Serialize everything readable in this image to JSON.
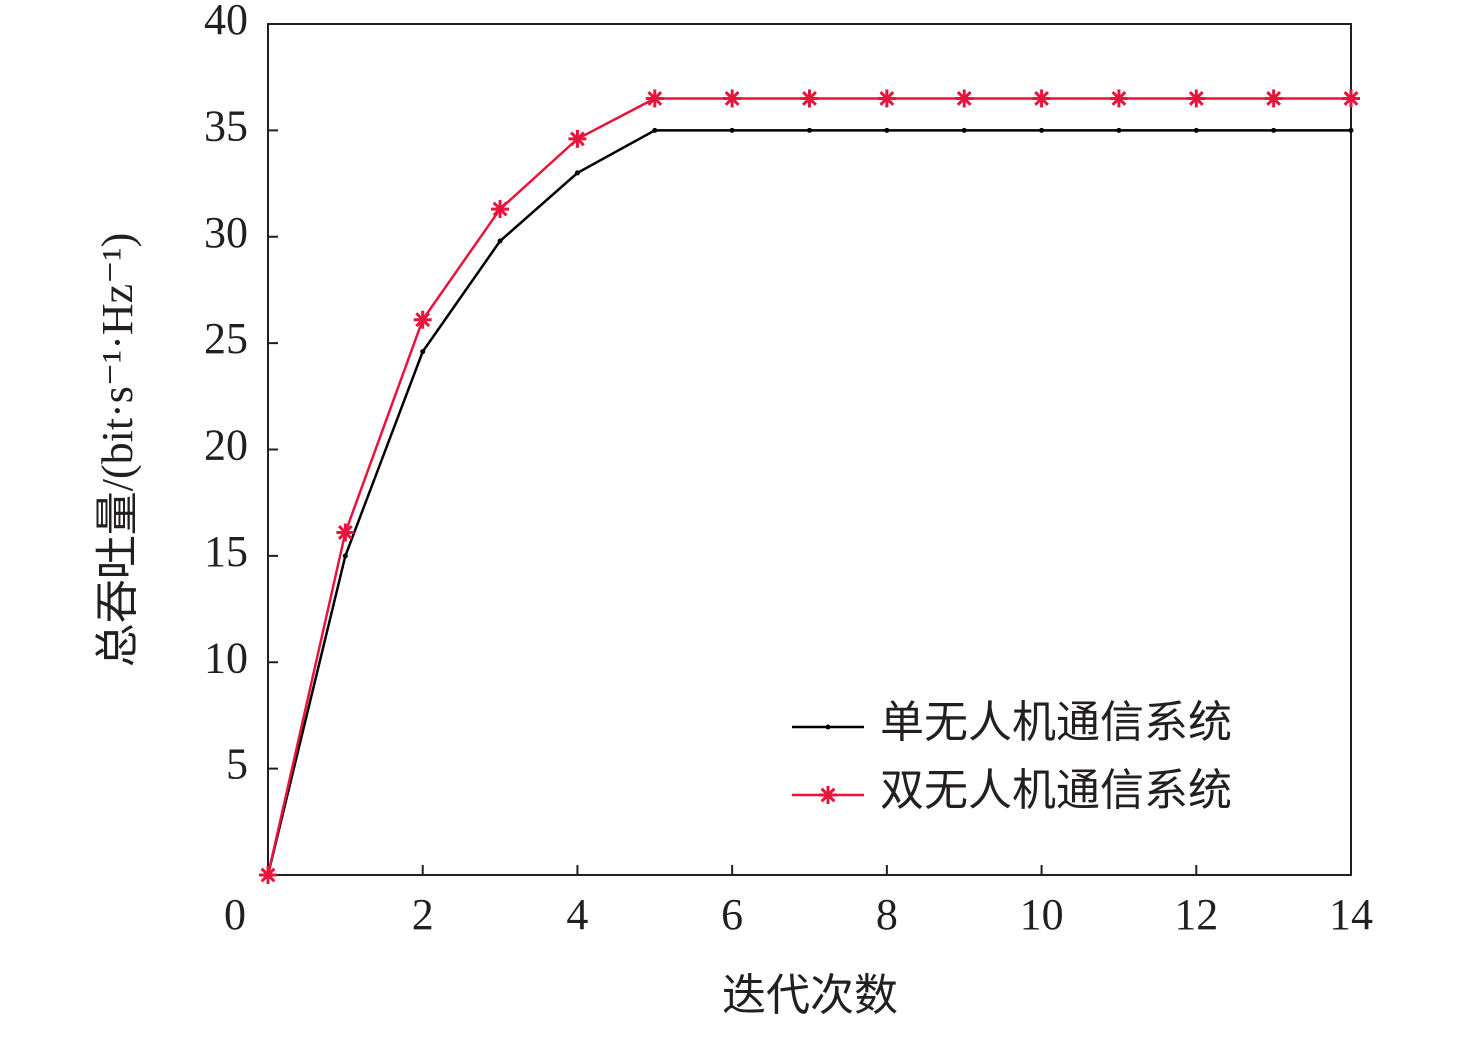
{
  "chart_data": {
    "type": "line",
    "xlabel": "迭代次数",
    "ylabel": "总吞吐量/(bit·s⁻¹·Hz⁻¹)",
    "x": [
      0,
      1,
      2,
      3,
      4,
      5,
      6,
      7,
      8,
      9,
      10,
      11,
      12,
      13,
      14
    ],
    "series": [
      {
        "name": "单无人机通信系统",
        "color": "#000000",
        "marker": "dot",
        "values": [
          0,
          15,
          24.6,
          29.8,
          33,
          35,
          35,
          35,
          35,
          35,
          35,
          35,
          35,
          35,
          35
        ]
      },
      {
        "name": "双无人机通信系统",
        "color": "#e8143c",
        "marker": "asterisk",
        "values": [
          0,
          16.1,
          26.1,
          31.3,
          34.6,
          36.5,
          36.5,
          36.5,
          36.5,
          36.5,
          36.5,
          36.5,
          36.5,
          36.5,
          36.5
        ]
      }
    ],
    "xlim": [
      0,
      14
    ],
    "xticks": [
      0,
      2,
      4,
      6,
      8,
      10,
      12,
      14
    ],
    "ylim": [
      0,
      40
    ],
    "yticks": [
      5,
      10,
      15,
      20,
      25,
      30,
      35,
      40
    ],
    "legend": "lower right"
  }
}
